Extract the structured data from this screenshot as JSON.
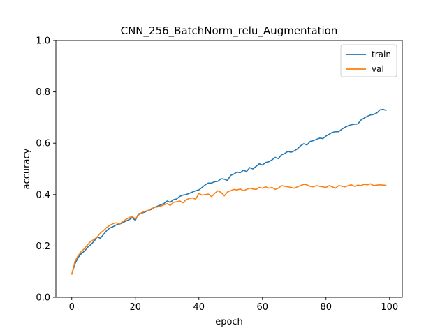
{
  "chart_data": {
    "type": "line",
    "title": "CNN_256_BatchNorm_relu_Augmentation",
    "xlabel": "epoch",
    "ylabel": "accuracy",
    "xlim": [
      -5,
      104
    ],
    "ylim": [
      0.0,
      1.0
    ],
    "xticks": [
      0,
      20,
      40,
      60,
      80,
      100
    ],
    "yticks": [
      0.0,
      0.2,
      0.4,
      0.6,
      0.8,
      1.0
    ],
    "xtick_labels": [
      "0",
      "20",
      "40",
      "60",
      "80",
      "100"
    ],
    "ytick_labels": [
      "0.0",
      "0.2",
      "0.4",
      "0.6",
      "0.8",
      "1.0"
    ],
    "grid": false,
    "legend_position": "top-right",
    "series": [
      {
        "name": "train",
        "color": "#1f77b4",
        "values": [
          0.09,
          0.13,
          0.155,
          0.17,
          0.18,
          0.195,
          0.205,
          0.218,
          0.235,
          0.23,
          0.245,
          0.26,
          0.27,
          0.275,
          0.282,
          0.285,
          0.29,
          0.297,
          0.302,
          0.31,
          0.3,
          0.325,
          0.328,
          0.332,
          0.338,
          0.342,
          0.35,
          0.355,
          0.36,
          0.365,
          0.375,
          0.37,
          0.38,
          0.383,
          0.393,
          0.398,
          0.4,
          0.405,
          0.41,
          0.415,
          0.418,
          0.428,
          0.438,
          0.445,
          0.445,
          0.45,
          0.452,
          0.462,
          0.46,
          0.455,
          0.475,
          0.48,
          0.488,
          0.485,
          0.495,
          0.49,
          0.505,
          0.5,
          0.51,
          0.52,
          0.515,
          0.525,
          0.528,
          0.535,
          0.545,
          0.54,
          0.555,
          0.56,
          0.568,
          0.565,
          0.57,
          0.578,
          0.59,
          0.598,
          0.593,
          0.607,
          0.61,
          0.615,
          0.62,
          0.618,
          0.628,
          0.635,
          0.642,
          0.645,
          0.645,
          0.655,
          0.662,
          0.668,
          0.672,
          0.674,
          0.675,
          0.69,
          0.698,
          0.705,
          0.71,
          0.712,
          0.718,
          0.73,
          0.732,
          0.727
        ]
      },
      {
        "name": "val",
        "color": "#ff7f0e",
        "values": [
          0.088,
          0.14,
          0.162,
          0.178,
          0.19,
          0.205,
          0.218,
          0.225,
          0.235,
          0.25,
          0.26,
          0.272,
          0.28,
          0.287,
          0.29,
          0.285,
          0.295,
          0.303,
          0.31,
          0.315,
          0.305,
          0.32,
          0.33,
          0.335,
          0.338,
          0.345,
          0.35,
          0.352,
          0.355,
          0.36,
          0.365,
          0.358,
          0.37,
          0.372,
          0.375,
          0.368,
          0.38,
          0.385,
          0.387,
          0.382,
          0.405,
          0.398,
          0.4,
          0.402,
          0.392,
          0.405,
          0.415,
          0.408,
          0.395,
          0.41,
          0.415,
          0.42,
          0.418,
          0.422,
          0.415,
          0.42,
          0.425,
          0.422,
          0.42,
          0.428,
          0.425,
          0.43,
          0.425,
          0.428,
          0.42,
          0.425,
          0.435,
          0.432,
          0.43,
          0.428,
          0.425,
          0.43,
          0.435,
          0.44,
          0.438,
          0.432,
          0.43,
          0.435,
          0.432,
          0.43,
          0.428,
          0.435,
          0.43,
          0.425,
          0.435,
          0.433,
          0.43,
          0.435,
          0.438,
          0.432,
          0.437,
          0.435,
          0.44,
          0.438,
          0.442,
          0.435,
          0.437,
          0.438,
          0.437,
          0.436
        ]
      }
    ]
  }
}
